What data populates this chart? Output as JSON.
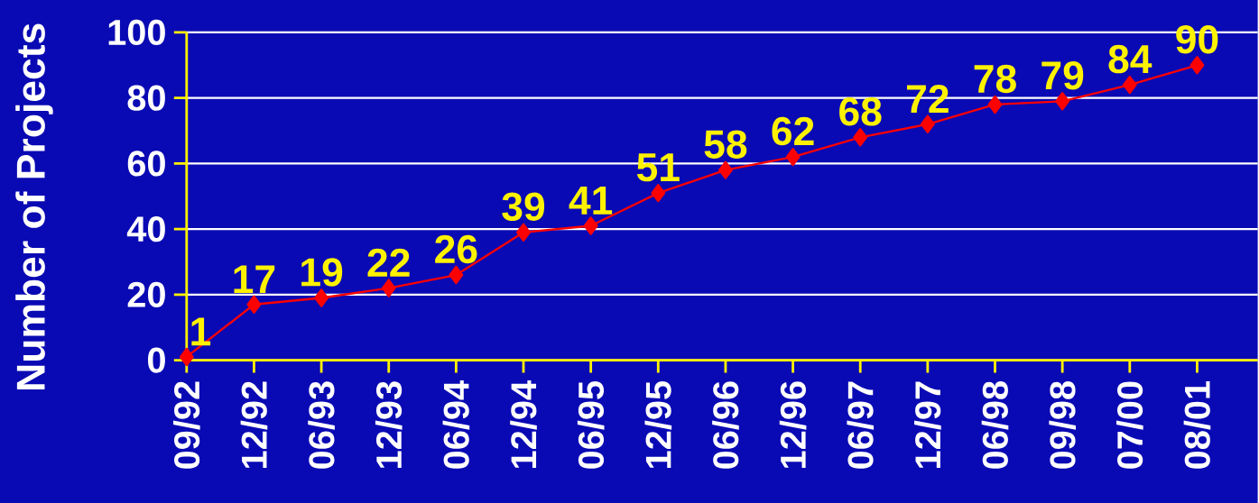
{
  "chart_data": {
    "type": "line",
    "ylabel": "Number of Projects",
    "categories": [
      "09/92",
      "12/92",
      "06/93",
      "12/93",
      "06/94",
      "12/94",
      "06/95",
      "12/95",
      "06/96",
      "12/96",
      "06/97",
      "12/97",
      "06/98",
      "09/98",
      "07/00",
      "08/01"
    ],
    "values": [
      1,
      17,
      19,
      22,
      26,
      39,
      41,
      51,
      58,
      62,
      68,
      72,
      78,
      79,
      84,
      90
    ],
    "color": "#ff0000",
    "marker": "diamond",
    "line_style": "solid",
    "data_labels": true,
    "grid": "y",
    "ylim": [
      0,
      100
    ],
    "yticks": [
      0,
      20,
      40,
      60,
      80,
      100
    ]
  }
}
